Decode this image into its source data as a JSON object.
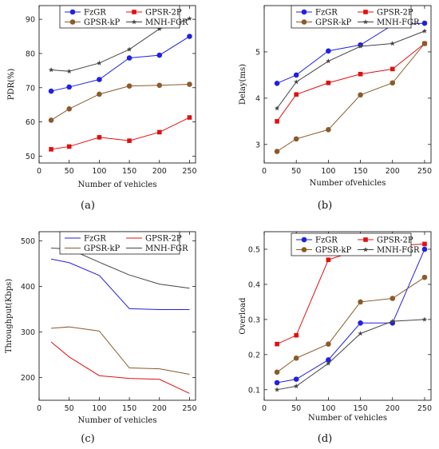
{
  "chart_data": [
    {
      "type": "line",
      "label": "(a)",
      "xlabel": "Number of vehicles",
      "ylabel": "PDR(%)",
      "xlim": [
        0,
        260
      ],
      "ylim": [
        48,
        94
      ],
      "xticks": [
        0,
        50,
        100,
        150,
        200,
        250
      ],
      "yticks": [
        50,
        60,
        70,
        80,
        90
      ],
      "x": [
        20,
        50,
        100,
        150,
        200,
        250
      ],
      "legend_position": "top",
      "series": [
        {
          "name": "FzGR",
          "values": [
            69,
            70.2,
            72.4,
            78.7,
            79.5,
            85
          ],
          "color": "#2020e0",
          "marker": "circle"
        },
        {
          "name": "GPSR-2P",
          "values": [
            52,
            52.8,
            55.5,
            54.5,
            57,
            61.3
          ],
          "color": "#e01010",
          "marker": "square"
        },
        {
          "name": "GPSR-kP",
          "values": [
            60.5,
            63.8,
            68.1,
            70.5,
            70.7,
            71
          ],
          "color": "#8b5a2b",
          "marker": "circle"
        },
        {
          "name": "MNH-FGR",
          "values": [
            75.2,
            74.8,
            77.2,
            81.2,
            87.2,
            90.2
          ],
          "color": "#444444",
          "marker": "star"
        }
      ]
    },
    {
      "type": "line",
      "label": "(b)",
      "xlabel": "Number ofvehicles",
      "ylabel": "Delay(ms)",
      "xlim": [
        0,
        260
      ],
      "ylim": [
        2.6,
        6.0
      ],
      "xticks": [
        0,
        50,
        100,
        150,
        200,
        250
      ],
      "yticks": [
        3,
        4,
        5
      ],
      "x": [
        20,
        50,
        100,
        150,
        200,
        250
      ],
      "legend_position": "top",
      "series": [
        {
          "name": "FzGR",
          "values": [
            4.32,
            4.5,
            5.02,
            5.15,
            5.58,
            5.62
          ],
          "color": "#2020e0",
          "marker": "circle"
        },
        {
          "name": "GPSR-2P",
          "values": [
            3.5,
            4.08,
            4.33,
            4.52,
            4.63,
            5.18
          ],
          "color": "#e01010",
          "marker": "square"
        },
        {
          "name": "GPSR-kP",
          "values": [
            2.85,
            3.12,
            3.32,
            4.07,
            4.33,
            5.18
          ],
          "color": "#8b5a2b",
          "marker": "circle"
        },
        {
          "name": "MNH-FGR",
          "values": [
            3.78,
            4.35,
            4.8,
            5.12,
            5.18,
            5.45
          ],
          "color": "#444444",
          "marker": "star"
        }
      ]
    },
    {
      "type": "line",
      "label": "(c)",
      "xlabel": "Number of vehicles",
      "ylabel": "Throughput(Kbps)",
      "xlim": [
        0,
        260
      ],
      "ylim": [
        150,
        520
      ],
      "xticks": [
        0,
        50,
        100,
        150,
        200,
        250
      ],
      "yticks": [
        200,
        300,
        400,
        500
      ],
      "x": [
        20,
        50,
        100,
        150,
        200,
        250
      ],
      "legend_position": "top",
      "series": [
        {
          "name": "FzGR",
          "values": [
            460,
            452,
            424,
            351,
            349,
            349
          ],
          "color": "#2020e0",
          "marker": "none"
        },
        {
          "name": "GPSR-2P",
          "values": [
            278,
            245,
            204,
            198,
            196,
            165
          ],
          "color": "#e01010",
          "marker": "none"
        },
        {
          "name": "GPSR-kP",
          "values": [
            308,
            311,
            302,
            221,
            219,
            207
          ],
          "color": "#8b5a2b",
          "marker": "none"
        },
        {
          "name": "MNH-FGR",
          "values": [
            484,
            482,
            453,
            425,
            405,
            396
          ],
          "color": "#444444",
          "marker": "none"
        }
      ]
    },
    {
      "type": "line",
      "label": "(d)",
      "xlabel": "Number of vehicles",
      "ylabel": "Overload",
      "xlim": [
        0,
        260
      ],
      "ylim": [
        0.07,
        0.55
      ],
      "xticks": [
        0,
        50,
        100,
        150,
        200,
        250
      ],
      "yticks": [
        0.1,
        0.2,
        0.3,
        0.4,
        0.5
      ],
      "x": [
        20,
        50,
        100,
        150,
        200,
        250
      ],
      "legend_position": "top",
      "series": [
        {
          "name": "FzGR",
          "values": [
            0.12,
            0.13,
            0.185,
            0.29,
            0.29,
            0.5
          ],
          "color": "#2020e0",
          "marker": "circle"
        },
        {
          "name": "GPSR-2P",
          "values": [
            0.23,
            0.255,
            0.47,
            0.5,
            0.51,
            0.515
          ],
          "color": "#e01010",
          "marker": "square"
        },
        {
          "name": "GPSR-kP",
          "values": [
            0.15,
            0.19,
            0.23,
            0.35,
            0.36,
            0.42
          ],
          "color": "#8b5a2b",
          "marker": "circle"
        },
        {
          "name": "MNH-FGR",
          "values": [
            0.1,
            0.11,
            0.175,
            0.26,
            0.295,
            0.3
          ],
          "color": "#444444",
          "marker": "star"
        }
      ]
    }
  ]
}
